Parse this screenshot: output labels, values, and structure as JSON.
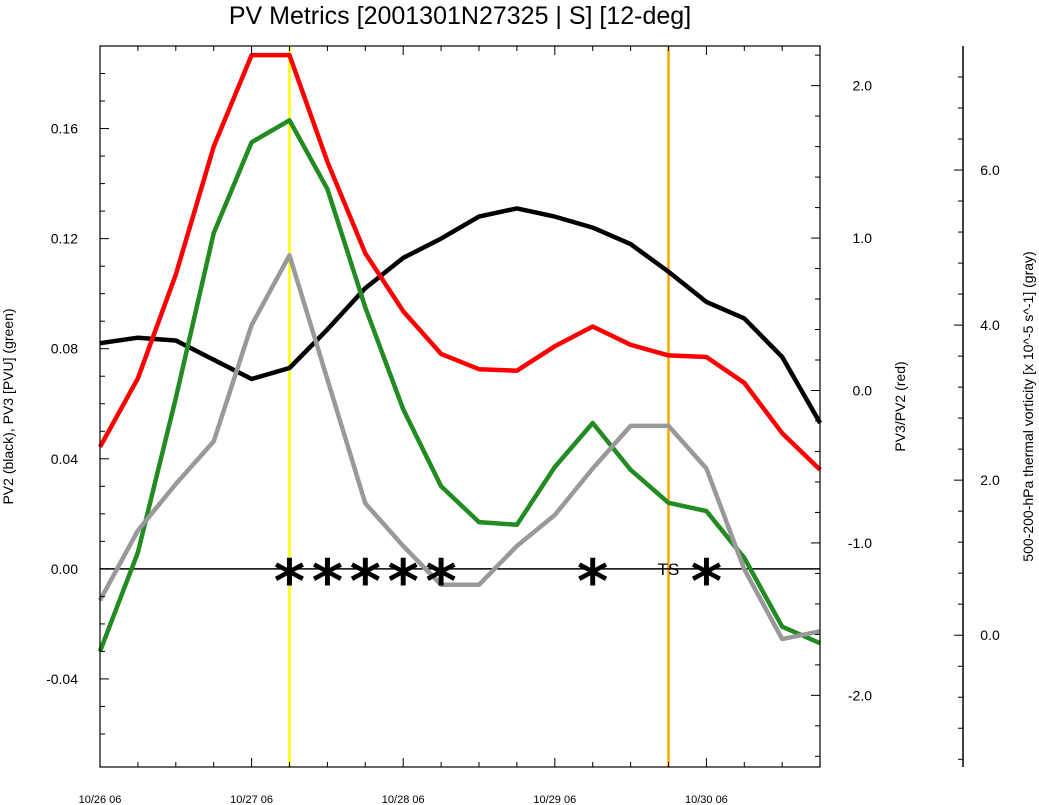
{
  "chart_data": {
    "type": "line",
    "title": "PV Metrics [2001301N27325 | S] [12-deg]",
    "x_ticks": [
      "10/26 06",
      "10/27 06",
      "10/28 06",
      "10/29 06",
      "10/30 06"
    ],
    "x_tick_steps": [
      0,
      4,
      8,
      12,
      16
    ],
    "x_range": [
      0,
      19
    ],
    "left_axis": {
      "label": "PV2 (black), PV3 [PVU] (green)",
      "range": [
        -0.072,
        0.19
      ],
      "tick_values": [
        -0.04,
        0.0,
        0.04,
        0.08,
        0.12,
        0.16
      ],
      "tick_labels": [
        "-0.04",
        "0.00",
        "0.04",
        "0.08",
        "0.12",
        "0.16"
      ]
    },
    "right_axis": {
      "label": "PV3/PV2 (red)",
      "range": [
        -2.47,
        2.26
      ],
      "tick_values": [
        -2.0,
        -1.0,
        0.0,
        1.0,
        2.0
      ],
      "tick_labels": [
        "-2.0",
        "-1.0",
        "0.0",
        "1.0",
        "2.0"
      ]
    },
    "far_right_axis": {
      "label": "500-200-hPa thermal vorticity [x 10^-5 s^-1] (gray)",
      "range": [
        -1.7,
        7.6
      ],
      "tick_values": [
        0.0,
        2.0,
        4.0,
        6.0
      ],
      "tick_labels": [
        "0.0",
        "2.0",
        "4.0",
        "6.0"
      ]
    },
    "series": [
      {
        "axis": "left",
        "color": "#000000",
        "x": [
          0,
          1,
          2,
          3,
          4,
          5,
          6,
          7,
          8,
          9,
          10,
          11,
          12,
          13,
          14,
          15,
          16,
          17,
          18,
          19
        ],
        "values": [
          0.082,
          0.084,
          0.083,
          0.076,
          0.069,
          0.073,
          0.087,
          0.102,
          0.113,
          0.12,
          0.128,
          0.131,
          0.128,
          0.124,
          0.118,
          0.108,
          0.097,
          0.091,
          0.077,
          0.053
        ]
      },
      {
        "axis": "left",
        "color": "#228b22",
        "x": [
          0,
          1,
          2,
          3,
          4,
          5,
          6,
          7,
          8,
          9,
          10,
          11,
          12,
          13,
          14,
          15,
          16,
          17,
          18,
          19
        ],
        "values": [
          -0.03,
          0.006,
          0.062,
          0.122,
          0.155,
          0.163,
          0.138,
          0.095,
          0.058,
          0.03,
          0.017,
          0.016,
          0.037,
          0.053,
          0.036,
          0.024,
          0.021,
          0.004,
          -0.021,
          -0.027
        ]
      },
      {
        "axis": "right",
        "color": "#ff0000",
        "x": [
          0,
          1,
          2,
          3,
          4,
          5,
          6,
          7,
          8,
          9,
          10,
          11,
          12,
          13,
          14,
          15,
          16,
          17,
          18,
          19
        ],
        "values": [
          -0.37,
          0.08,
          0.76,
          1.6,
          2.2,
          2.2,
          1.5,
          0.9,
          0.52,
          0.24,
          0.14,
          0.13,
          0.29,
          0.42,
          0.3,
          0.23,
          0.22,
          0.05,
          -0.28,
          -0.52
        ]
      },
      {
        "axis": "far_right",
        "color": "#999999",
        "x": [
          0,
          1,
          2,
          3,
          4,
          5,
          6,
          7,
          8,
          9,
          10,
          11,
          12,
          13,
          14,
          15,
          16,
          17,
          18,
          19
        ],
        "values": [
          0.45,
          1.35,
          1.95,
          2.5,
          4.0,
          4.9,
          3.3,
          1.7,
          1.15,
          0.65,
          0.65,
          1.15,
          1.55,
          2.15,
          2.7,
          2.7,
          2.15,
          0.85,
          -0.05,
          0.05
        ]
      }
    ],
    "vertical_lines": [
      {
        "x": 5,
        "color": "#ffff00"
      },
      {
        "x": 15,
        "color": "#ffa500"
      }
    ],
    "zero_line": 0.0,
    "markers": [
      {
        "x": 5,
        "symbol": "*"
      },
      {
        "x": 6,
        "symbol": "*"
      },
      {
        "x": 7,
        "symbol": "*"
      },
      {
        "x": 8,
        "symbol": "*"
      },
      {
        "x": 9,
        "symbol": "*"
      },
      {
        "x": 13,
        "symbol": "*"
      },
      {
        "x": 16,
        "symbol": "*"
      }
    ],
    "annotations": [
      {
        "text": "TS",
        "x": 15
      }
    ]
  }
}
